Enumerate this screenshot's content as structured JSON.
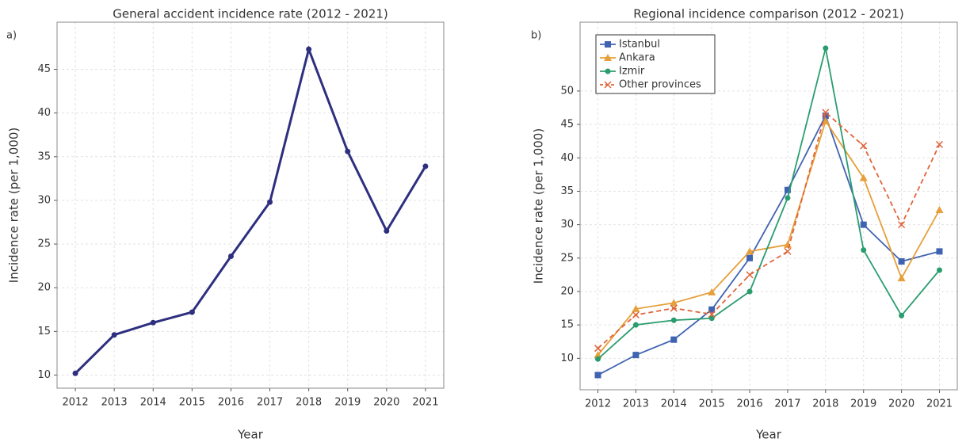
{
  "chart_data": [
    {
      "type": "line",
      "panel_label": "a)",
      "title": "General accident incidence rate (2012 - 2021)",
      "xlabel": "Year",
      "ylabel": "Incidence rate (per 1,000)",
      "categories": [
        "2012",
        "2013",
        "2014",
        "2015",
        "2016",
        "2017",
        "2018",
        "2019",
        "2020",
        "2021"
      ],
      "series": [
        {
          "name": null,
          "color": "#2e2f7f",
          "marker": "circle",
          "dashed": false,
          "values": [
            10.2,
            14.6,
            16.0,
            17.2,
            23.6,
            29.8,
            47.3,
            35.6,
            26.5,
            33.9
          ]
        }
      ],
      "ylim": [
        8.5,
        50.4
      ],
      "yticks": [
        10,
        15,
        20,
        25,
        30,
        35,
        40,
        45
      ],
      "grid": true,
      "legend": null
    },
    {
      "type": "line",
      "panel_label": "b)",
      "title": "Regional incidence comparison (2012 - 2021)",
      "xlabel": "Year",
      "ylabel": "Incidence rate (per 1,000)",
      "categories": [
        "2012",
        "2013",
        "2014",
        "2015",
        "2016",
        "2017",
        "2018",
        "2019",
        "2020",
        "2021"
      ],
      "series": [
        {
          "name": "Istanbul",
          "color": "#3f63b0",
          "marker": "square",
          "dashed": false,
          "values": [
            7.5,
            10.5,
            12.8,
            17.3,
            25.0,
            35.2,
            46.3,
            30.0,
            24.5,
            26.0
          ]
        },
        {
          "name": "Ankara",
          "color": "#e69f3a",
          "marker": "triangle",
          "dashed": false,
          "values": [
            10.5,
            17.4,
            18.3,
            19.9,
            26.0,
            27.0,
            45.5,
            37.0,
            22.0,
            32.2
          ]
        },
        {
          "name": "Izmir",
          "color": "#2a9d6f",
          "marker": "circle",
          "dashed": false,
          "values": [
            9.9,
            15.0,
            15.7,
            16.0,
            20.0,
            34.0,
            56.4,
            26.2,
            16.4,
            23.2
          ]
        },
        {
          "name": "Other provinces",
          "color": "#e0643a",
          "marker": "x",
          "dashed": true,
          "values": [
            11.5,
            16.5,
            17.5,
            16.6,
            22.5,
            26.0,
            46.8,
            41.8,
            30.0,
            42.0
          ]
        }
      ],
      "ylim": [
        5.3,
        60.3
      ],
      "yticks": [
        10,
        15,
        20,
        25,
        30,
        35,
        40,
        45,
        50
      ],
      "grid": true,
      "legend": "upper left"
    }
  ]
}
